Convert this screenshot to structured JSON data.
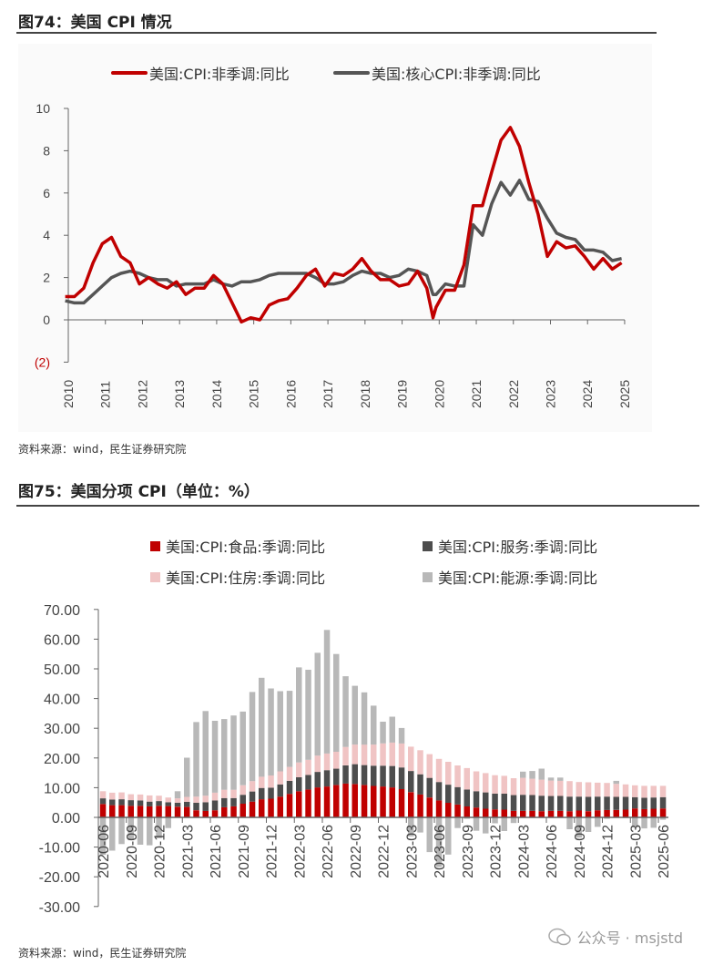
{
  "figure74": {
    "title": "图74：美国 CPI 情况",
    "source": "资料来源：wind，民生证券研究院"
  },
  "figure75": {
    "title": "图75：美国分项 CPI（单位：%）",
    "source": "资料来源：wind，民生证券研究院"
  },
  "watermark": "公众号 · msjstd",
  "chart_data": [
    {
      "type": "line",
      "title": "",
      "legend_position": "top",
      "ylim": [
        -2,
        10
      ],
      "yticks": [
        "(2)",
        "0",
        "2",
        "4",
        "6",
        "8",
        "10"
      ],
      "ytick_values": [
        -2,
        0,
        2,
        4,
        6,
        8,
        10
      ],
      "xticks": [
        "2010",
        "2011",
        "2012",
        "2013",
        "2014",
        "2015",
        "2016",
        "2017",
        "2018",
        "2019",
        "2020",
        "2021",
        "2022",
        "2023",
        "2024",
        "2025"
      ],
      "grid": false,
      "colors": {
        "headline": "#c00000",
        "core": "#555555",
        "negative_label": "#c00000"
      },
      "x": [
        "2010-06",
        "2010-09",
        "2010-12",
        "2011-03",
        "2011-06",
        "2011-09",
        "2011-12",
        "2012-03",
        "2012-06",
        "2012-09",
        "2012-12",
        "2013-03",
        "2013-06",
        "2013-09",
        "2013-12",
        "2014-03",
        "2014-06",
        "2014-09",
        "2014-12",
        "2015-03",
        "2015-06",
        "2015-09",
        "2015-12",
        "2016-03",
        "2016-06",
        "2016-09",
        "2016-12",
        "2017-03",
        "2017-06",
        "2017-09",
        "2017-12",
        "2018-03",
        "2018-06",
        "2018-09",
        "2018-12",
        "2019-03",
        "2019-06",
        "2019-09",
        "2019-12",
        "2020-03",
        "2020-05",
        "2020-06",
        "2020-09",
        "2020-12",
        "2021-03",
        "2021-06",
        "2021-09",
        "2021-12",
        "2022-03",
        "2022-06",
        "2022-09",
        "2022-12",
        "2023-03",
        "2023-06",
        "2023-09",
        "2023-12",
        "2024-03",
        "2024-06",
        "2024-09",
        "2024-12",
        "2025-03",
        "2025-06"
      ],
      "series": [
        {
          "name": "美国:CPI:非季调:同比",
          "values": [
            1.1,
            1.1,
            1.5,
            2.7,
            3.6,
            3.9,
            3.0,
            2.7,
            1.7,
            2.0,
            1.7,
            1.5,
            1.8,
            1.2,
            1.5,
            1.5,
            2.1,
            1.7,
            0.8,
            -0.1,
            0.1,
            0.0,
            0.7,
            0.9,
            1.0,
            1.5,
            2.1,
            2.4,
            1.6,
            2.2,
            2.1,
            2.4,
            2.9,
            2.3,
            1.9,
            1.9,
            1.6,
            1.7,
            2.3,
            1.5,
            0.1,
            0.6,
            1.4,
            1.4,
            2.6,
            5.4,
            5.4,
            7.0,
            8.5,
            9.1,
            8.2,
            6.5,
            5.0,
            3.0,
            3.7,
            3.4,
            3.5,
            3.0,
            2.4,
            2.9,
            2.4,
            2.7
          ]
        },
        {
          "name": "美国:核心CPI:非季调:同比",
          "values": [
            0.9,
            0.8,
            0.8,
            1.2,
            1.6,
            2.0,
            2.2,
            2.3,
            2.2,
            2.0,
            1.9,
            1.9,
            1.6,
            1.7,
            1.7,
            1.7,
            1.9,
            1.7,
            1.6,
            1.8,
            1.8,
            1.9,
            2.1,
            2.2,
            2.2,
            2.2,
            2.2,
            2.0,
            1.7,
            1.7,
            1.8,
            2.1,
            2.3,
            2.2,
            2.2,
            2.0,
            2.1,
            2.4,
            2.3,
            2.1,
            1.2,
            1.2,
            1.7,
            1.6,
            1.6,
            4.5,
            4.0,
            5.5,
            6.5,
            5.9,
            6.6,
            5.7,
            5.6,
            4.8,
            4.1,
            3.9,
            3.8,
            3.3,
            3.3,
            3.2,
            2.8,
            2.9
          ]
        }
      ]
    },
    {
      "type": "bar",
      "stacked": true,
      "title": "",
      "legend_position": "top",
      "ylim": [
        -30,
        70
      ],
      "yticks": [
        "70.00",
        "60.00",
        "50.00",
        "40.00",
        "30.00",
        "20.00",
        "10.00",
        "0.00",
        "-10.00",
        "-20.00",
        "-30.00"
      ],
      "ytick_values": [
        70,
        60,
        50,
        40,
        30,
        20,
        10,
        0,
        -10,
        -20,
        -30
      ],
      "grid": false,
      "categories": [
        "2020-06",
        "2020-07",
        "2020-08",
        "2020-09",
        "2020-10",
        "2020-11",
        "2020-12",
        "2021-01",
        "2021-02",
        "2021-03",
        "2021-04",
        "2021-05",
        "2021-06",
        "2021-07",
        "2021-08",
        "2021-09",
        "2021-10",
        "2021-11",
        "2021-12",
        "2022-01",
        "2022-02",
        "2022-03",
        "2022-04",
        "2022-05",
        "2022-06",
        "2022-07",
        "2022-08",
        "2022-09",
        "2022-10",
        "2022-11",
        "2022-12",
        "2023-01",
        "2023-02",
        "2023-03",
        "2023-04",
        "2023-05",
        "2023-06",
        "2023-07",
        "2023-08",
        "2023-09",
        "2023-10",
        "2023-11",
        "2023-12",
        "2024-01",
        "2024-02",
        "2024-03",
        "2024-04",
        "2024-05",
        "2024-06",
        "2024-07",
        "2024-08",
        "2024-09",
        "2024-10",
        "2024-11",
        "2024-12",
        "2025-01",
        "2025-02",
        "2025-03",
        "2025-04",
        "2025-05",
        "2025-06"
      ],
      "series": [
        {
          "name": "美国:CPI:食品:季调:同比",
          "color": "#c00000",
          "values": [
            4.5,
            4.1,
            4.1,
            3.9,
            3.9,
            3.7,
            3.9,
            3.8,
            3.6,
            3.5,
            2.4,
            2.2,
            2.4,
            3.4,
            3.7,
            4.6,
            5.3,
            6.1,
            6.3,
            7.0,
            7.9,
            8.8,
            9.4,
            10.1,
            10.4,
            10.9,
            11.4,
            11.2,
            10.9,
            10.6,
            10.4,
            10.1,
            9.5,
            8.5,
            7.7,
            6.7,
            5.7,
            4.9,
            4.3,
            3.7,
            3.3,
            2.9,
            2.7,
            2.6,
            2.2,
            2.2,
            2.2,
            2.1,
            2.2,
            2.2,
            2.1,
            2.3,
            2.1,
            2.4,
            2.5,
            2.5,
            2.6,
            3.0,
            2.8,
            2.9,
            3.0
          ]
        },
        {
          "name": "美国:CPI:服务:季调:同比",
          "color": "#4d4d4d",
          "values": [
            1.9,
            1.9,
            2.0,
            1.9,
            1.8,
            1.6,
            1.6,
            1.3,
            1.3,
            1.7,
            2.5,
            2.9,
            3.3,
            3.1,
            2.8,
            3.0,
            3.4,
            3.8,
            3.7,
            4.1,
            4.4,
            4.7,
            4.9,
            5.2,
            5.5,
            5.5,
            6.1,
            6.7,
            6.7,
            6.8,
            7.0,
            7.2,
            7.3,
            7.1,
            6.8,
            6.6,
            6.2,
            6.1,
            5.9,
            5.7,
            5.5,
            5.5,
            5.3,
            5.4,
            5.3,
            5.4,
            5.3,
            5.2,
            5.0,
            5.0,
            4.9,
            4.7,
            4.8,
            4.6,
            4.5,
            4.4,
            4.3,
            3.8,
            3.8,
            3.8,
            3.8
          ]
        },
        {
          "name": "美国:CPI:住房:季调:同比",
          "color": "#f0c4c4",
          "values": [
            2.4,
            2.3,
            2.3,
            2.0,
            2.0,
            2.1,
            1.8,
            1.6,
            1.5,
            1.7,
            2.1,
            2.2,
            2.6,
            2.8,
            2.8,
            3.2,
            3.5,
            3.8,
            4.1,
            4.4,
            4.7,
            5.0,
            5.1,
            5.5,
            5.6,
            5.7,
            6.2,
            6.6,
            6.9,
            7.1,
            7.5,
            7.9,
            8.1,
            8.2,
            8.1,
            8.0,
            7.8,
            7.7,
            7.3,
            7.2,
            6.7,
            6.5,
            6.2,
            6.0,
            5.7,
            5.7,
            5.5,
            5.4,
            5.2,
            5.1,
            5.2,
            4.9,
            4.9,
            4.7,
            4.6,
            4.4,
            4.2,
            4.0,
            4.0,
            3.9,
            3.8
          ]
        },
        {
          "name": "美国:CPI:能源:季调:同比",
          "color": "#b8b8b8",
          "values": [
            -12.6,
            -11.2,
            -9.0,
            -7.7,
            -9.2,
            -9.4,
            -7.0,
            -3.6,
            2.4,
            13.2,
            25.1,
            28.5,
            24.2,
            23.8,
            25.0,
            24.8,
            30.0,
            33.3,
            29.3,
            27.0,
            25.6,
            32.0,
            30.3,
            34.6,
            41.6,
            32.9,
            23.8,
            19.8,
            17.6,
            13.1,
            7.3,
            8.7,
            5.2,
            -6.4,
            -5.1,
            -11.7,
            -16.7,
            -12.5,
            -3.6,
            -0.5,
            -4.5,
            -5.4,
            -2.0,
            -4.6,
            -1.9,
            2.1,
            2.6,
            3.7,
            1.0,
            1.1,
            -4.0,
            -6.8,
            -4.9,
            -3.2,
            -0.5,
            1.0,
            -0.2,
            -3.3,
            -3.7,
            -3.5,
            -0.8
          ]
        }
      ]
    }
  ]
}
